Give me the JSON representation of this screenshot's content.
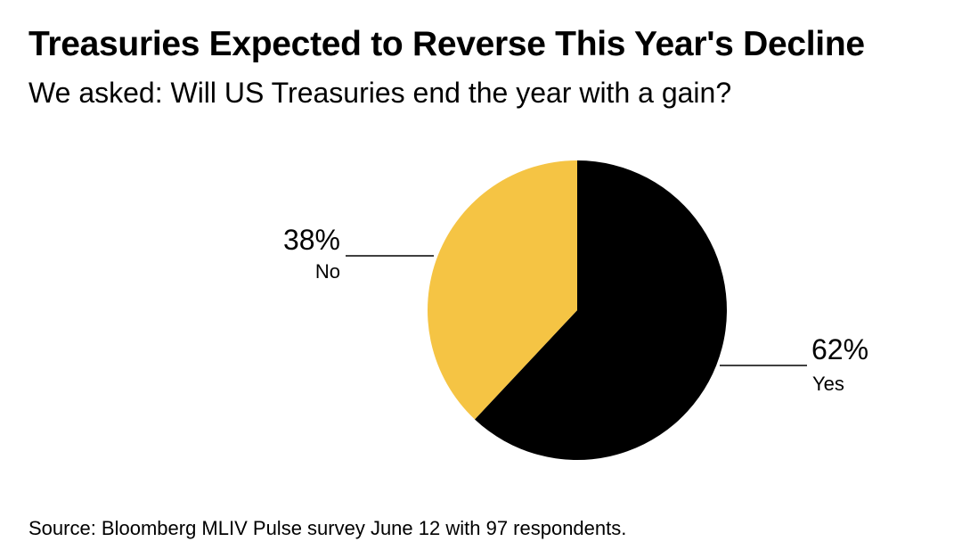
{
  "title": "Treasuries Expected to Reverse This Year's Decline",
  "subtitle": "We asked: Will US Treasuries end the year with a gain?",
  "source": "Source: Bloomberg MLIV Pulse survey June 12 with 97 respondents.",
  "chart_data": {
    "type": "pie",
    "slices": [
      {
        "label": "Yes",
        "value": 62,
        "value_label": "62%",
        "color": "#000000"
      },
      {
        "label": "No",
        "value": 38,
        "value_label": "38%",
        "color": "#F5C444"
      }
    ],
    "start": "12 o'clock",
    "direction": "clockwise",
    "legend": "none"
  }
}
